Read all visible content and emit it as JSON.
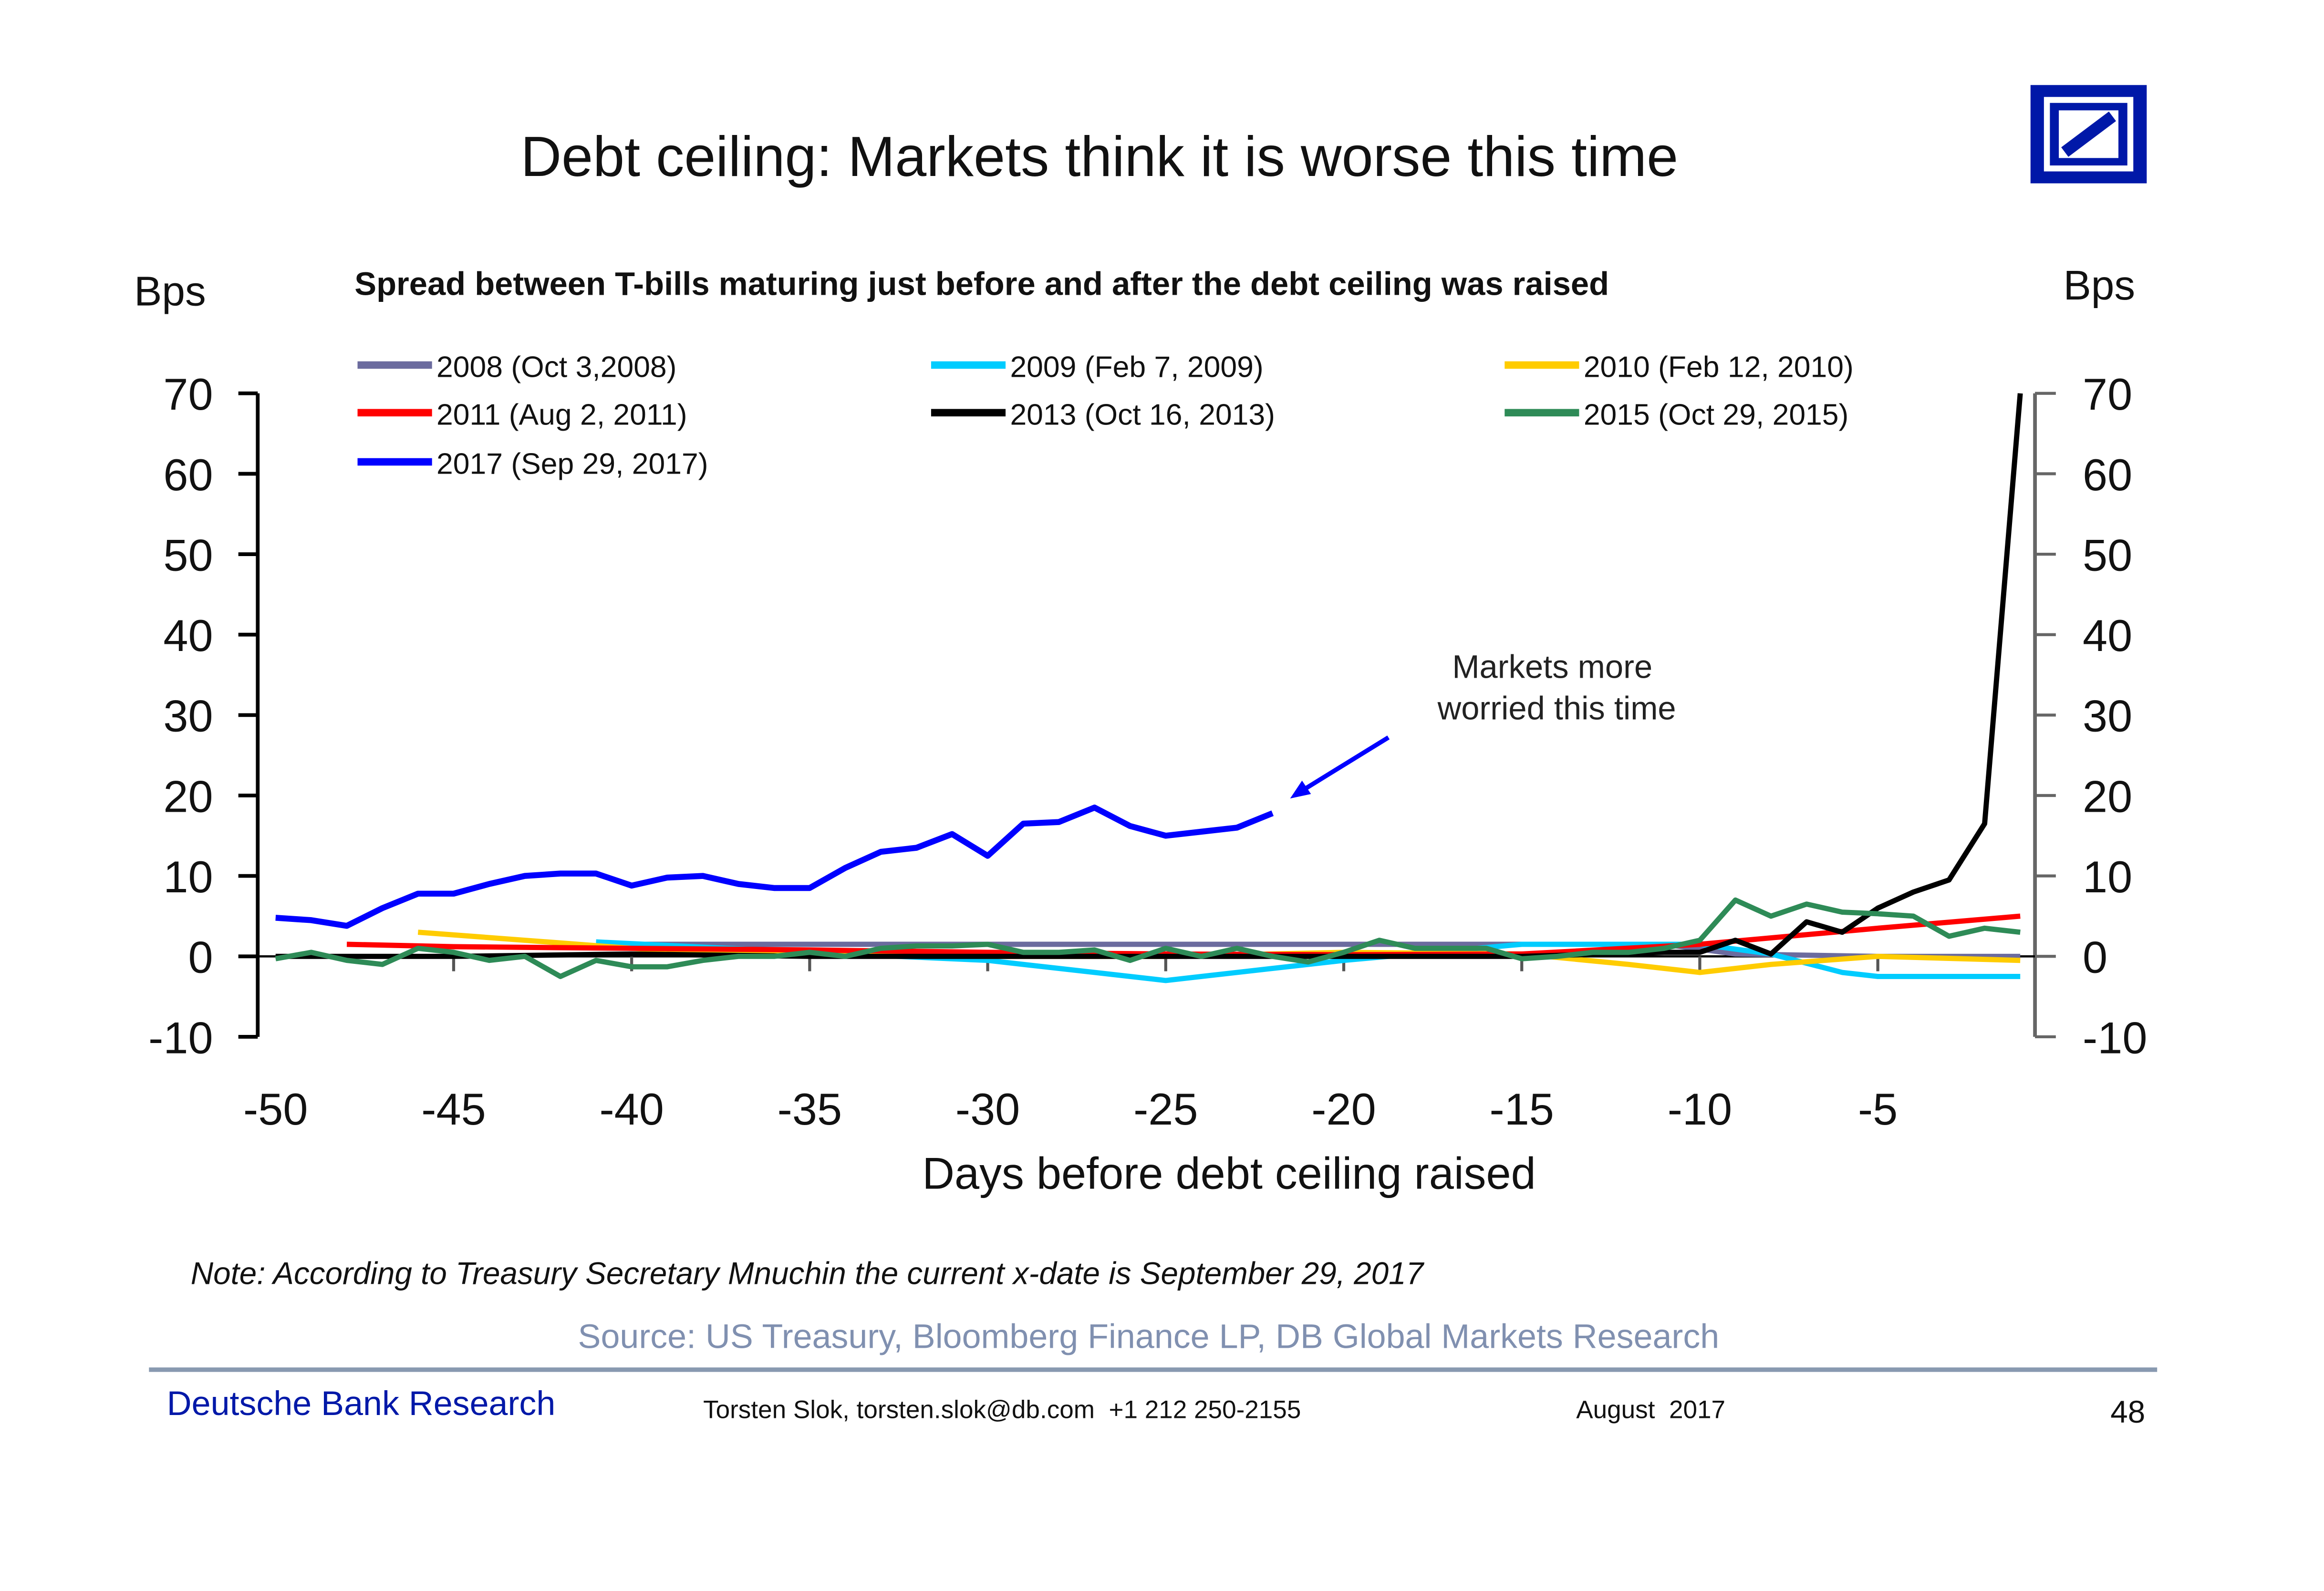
{
  "title": "Debt ceiling: Markets think it is worse this time",
  "chart_data": {
    "type": "line",
    "title": "Spread between T-bills maturing just before and after the debt ceiling was raised",
    "ylabel_left": "Bps",
    "ylabel_right": "Bps",
    "xlabel": "Days before debt ceiling raised",
    "xlim": [
      -50,
      -1
    ],
    "ylim": [
      -10,
      70
    ],
    "x_ticks": [
      -50,
      -45,
      -40,
      -35,
      -30,
      -25,
      -20,
      -15,
      -10,
      -5
    ],
    "y_ticks": [
      -10,
      0,
      10,
      20,
      30,
      40,
      50,
      60,
      70
    ],
    "legend_placement": "top",
    "annotation": {
      "line1": "Markets more",
      "line2": "worried this time",
      "points_to": [
        -22,
        17.8
      ]
    },
    "series": [
      {
        "name": "2008 (Oct 3,2008)",
        "color": "#6b6b9e",
        "x": [
          -41,
          -35,
          -30,
          -25,
          -20,
          -15,
          -11,
          -9,
          -5,
          -1
        ],
        "values": [
          1.5,
          1.5,
          1.5,
          1.5,
          1.5,
          1.5,
          1.5,
          0.3,
          0,
          0
        ]
      },
      {
        "name": "2009 (Feb 7, 2009)",
        "color": "#00ccff",
        "x": [
          -41,
          -35,
          -30,
          -26,
          -25,
          -20,
          -15,
          -10,
          -8,
          -6,
          -5,
          -1
        ],
        "values": [
          1.8,
          0.5,
          -0.5,
          -2.5,
          -3,
          -0.5,
          1.5,
          1.5,
          0.3,
          -2,
          -2.5,
          -2.5
        ]
      },
      {
        "name": "2010 (Feb 12, 2010)",
        "color": "#ffcc00",
        "x": [
          -46,
          -43,
          -40,
          -38,
          -35,
          -30,
          -25,
          -20,
          -15,
          -12,
          -10,
          -8,
          -5,
          -1
        ],
        "values": [
          3,
          2,
          1,
          0.5,
          0.2,
          0,
          0,
          0.5,
          0.3,
          -1,
          -2,
          -1,
          0,
          -0.5
        ]
      },
      {
        "name": "2011 (Aug 2, 2011)",
        "color": "#ff0000",
        "x": [
          -48,
          -45,
          -40,
          -35,
          -30,
          -25,
          -20,
          -15,
          -10,
          -5,
          -1
        ],
        "values": [
          1.5,
          1.2,
          1,
          0.8,
          0.5,
          0.3,
          0.2,
          0.3,
          1.5,
          3.5,
          5
        ]
      },
      {
        "name": "2013 (Oct 16, 2013)",
        "color": "#000000",
        "x": [
          -50,
          -45,
          -40,
          -35,
          -30,
          -25,
          -20,
          -15,
          -11,
          -10,
          -9,
          -8,
          -7,
          -6,
          -5,
          -4,
          -3,
          -2,
          -1
        ],
        "values": [
          0,
          0,
          0.3,
          0,
          0,
          0,
          0,
          0,
          0.5,
          0.5,
          2,
          0.3,
          4.3,
          3,
          6,
          8,
          9.5,
          16.5,
          70
        ]
      },
      {
        "name": "2015 (Oct 29, 2015)",
        "color": "#2e8b57",
        "x": [
          -50,
          -49,
          -48,
          -47,
          -46,
          -45,
          -44,
          -43,
          -42,
          -41,
          -40,
          -39,
          -38,
          -37,
          -36,
          -35,
          -34,
          -33,
          -32,
          -31,
          -30,
          -29,
          -28,
          -27,
          -26,
          -25,
          -24,
          -23,
          -22,
          -21,
          -20,
          -19,
          -18,
          -17,
          -16,
          -15,
          -14,
          -13,
          -12,
          -11,
          -10,
          -9,
          -8,
          -7,
          -6,
          -5,
          -4,
          -3,
          -2,
          -1
        ],
        "values": [
          -0.3,
          0.5,
          -0.5,
          -1,
          1,
          0.5,
          -0.5,
          0,
          -2.5,
          -0.5,
          -1.3,
          -1.3,
          -0.5,
          0,
          0,
          0.5,
          0,
          1,
          1.3,
          1.3,
          1.5,
          0.5,
          0.5,
          0.8,
          -0.5,
          1,
          0,
          1,
          0,
          -0.7,
          0.5,
          2,
          1,
          1,
          1,
          -0.3,
          0,
          0.5,
          0.5,
          1,
          2,
          7,
          5,
          6.5,
          5.5,
          5.3,
          5,
          2.5,
          3.5,
          3
        ]
      },
      {
        "name": "2017 (Sep 29, 2017)",
        "color": "#0000ff",
        "x": [
          -50,
          -49,
          -48,
          -47,
          -46,
          -45,
          -44,
          -43,
          -42,
          -41,
          -40,
          -39,
          -38,
          -37,
          -36,
          -35,
          -34,
          -33,
          -32,
          -31,
          -30,
          -29,
          -28,
          -27,
          -26,
          -25,
          -24,
          -23,
          -22
        ],
        "values": [
          4.8,
          4.5,
          3.8,
          6,
          7.8,
          7.8,
          9,
          10,
          10.3,
          10.3,
          8.8,
          9.8,
          10,
          9,
          8.5,
          8.5,
          11,
          13,
          13.5,
          15.2,
          12.5,
          16.5,
          16.7,
          18.5,
          16.2,
          15,
          15.5,
          16,
          17.8
        ]
      }
    ]
  },
  "note": "Note: According to Treasury Secretary Mnuchin the current x-date is September 29, 2017",
  "source": "Source: US Treasury, Bloomberg Finance LP, DB Global Markets Research",
  "footer": {
    "brand": "Deutsche Bank Research",
    "contact": "Torsten Slok, torsten.slok@db.com  +1 212 250-2155",
    "date": "August  2017",
    "page": "48"
  },
  "colors": {
    "brand_blue": "#0018a8",
    "source_grey": "#8090b0",
    "rule": "#8899b0"
  }
}
